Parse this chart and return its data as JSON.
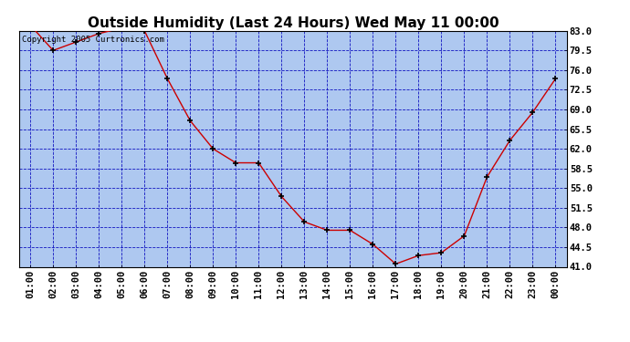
{
  "title": "Outside Humidity (Last 24 Hours) Wed May 11 00:00",
  "copyright": "Copyright 2005 Curtronics.com",
  "x_labels": [
    "01:00",
    "02:00",
    "03:00",
    "04:00",
    "05:00",
    "06:00",
    "07:00",
    "08:00",
    "09:00",
    "10:00",
    "11:00",
    "12:00",
    "13:00",
    "14:00",
    "15:00",
    "16:00",
    "17:00",
    "18:00",
    "19:00",
    "20:00",
    "21:00",
    "22:00",
    "23:00",
    "00:00"
  ],
  "x_values": [
    1,
    2,
    3,
    4,
    5,
    6,
    7,
    8,
    9,
    10,
    11,
    12,
    13,
    14,
    15,
    16,
    17,
    18,
    19,
    20,
    21,
    22,
    23,
    24
  ],
  "y_values": [
    84.0,
    79.5,
    81.0,
    82.5,
    83.5,
    83.0,
    74.5,
    67.0,
    62.0,
    59.5,
    59.5,
    53.5,
    49.0,
    47.5,
    47.5,
    45.0,
    41.5,
    43.0,
    43.5,
    46.5,
    57.0,
    63.5,
    68.5,
    74.5
  ],
  "ylim": [
    41.0,
    83.0
  ],
  "yticks": [
    41.0,
    44.5,
    48.0,
    51.5,
    55.0,
    58.5,
    62.0,
    65.5,
    69.0,
    72.5,
    76.0,
    79.5,
    83.0
  ],
  "line_color": "#cc0000",
  "marker_color": "#000000",
  "bg_color": "#aec8f0",
  "grid_color": "#0000bb",
  "title_fontsize": 11,
  "tick_fontsize": 7.5,
  "copyright_fontsize": 6.5
}
